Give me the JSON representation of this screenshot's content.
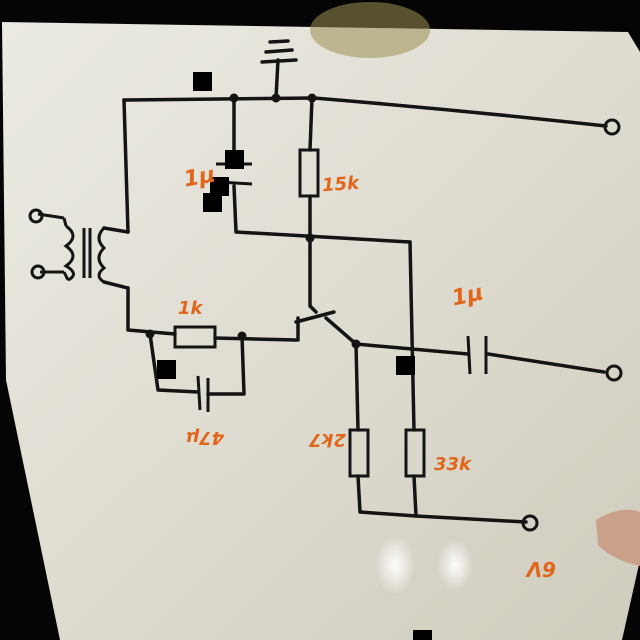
{
  "title": "",
  "colors": {
    "board": "#e4e1d7",
    "ink": "#141414",
    "marker_orange": "#e0661c",
    "background": "#050505"
  },
  "labels": {
    "cap_top": "1μ",
    "res_top": "15k",
    "res_bias": "1k",
    "cap_bias": "47μ",
    "cap_out": "1μ",
    "res_emitter": "2k7",
    "res_load": "33k",
    "output_terminal": "6V"
  }
}
